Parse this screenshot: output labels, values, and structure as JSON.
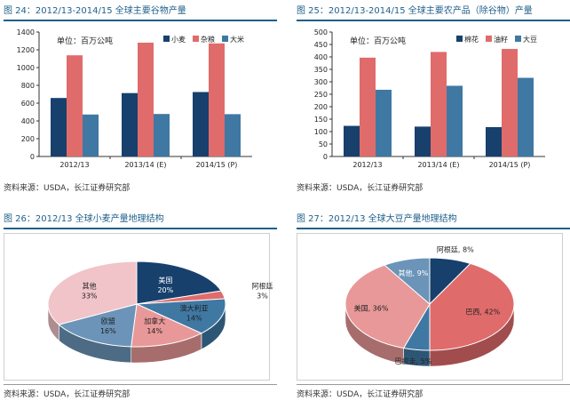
{
  "chart_data": [
    {
      "type": "bar",
      "title": "图 24：2012/13-2014/15 全球主要谷物产量",
      "unit_label": "单位：百万公吨",
      "categories": [
        "2012/13",
        "2013/14 (E)",
        "2014/15 (P)"
      ],
      "series": [
        {
          "name": "小麦",
          "color": "#17406d",
          "values": [
            658,
            713,
            725
          ]
        },
        {
          "name": "杂粮",
          "color": "#e06b6b",
          "values": [
            1138,
            1280,
            1272
          ]
        },
        {
          "name": "大米",
          "color": "#3f78a3",
          "values": [
            472,
            478,
            476
          ]
        }
      ],
      "ylim": [
        0,
        1400
      ],
      "yticks": [
        "0",
        "200",
        "400",
        "600",
        "800",
        "1000",
        "1200",
        "1400"
      ],
      "legend_position": "top-right",
      "grid": false,
      "source": "资料来源：USDA，长江证券研究部"
    },
    {
      "type": "bar",
      "title": "图 25：2012/13-2014/15 全球主要农产品（除谷物）产量",
      "unit_label": "单位：百万公吨",
      "categories": [
        "2012/13",
        "2013/14 (E)",
        "2014/15 (P)"
      ],
      "series": [
        {
          "name": "棉花",
          "color": "#17406d",
          "values": [
            123,
            120,
            118
          ]
        },
        {
          "name": "油籽",
          "color": "#e06b6b",
          "values": [
            397,
            420,
            432
          ]
        },
        {
          "name": "大豆",
          "color": "#3f78a3",
          "values": [
            268,
            284,
            316
          ]
        }
      ],
      "ylim": [
        0,
        500
      ],
      "yticks": [
        "0",
        "50",
        "100",
        "150",
        "200",
        "250",
        "300",
        "350",
        "400",
        "450",
        "500"
      ],
      "legend_position": "top-right",
      "grid": false,
      "source": "资料来源：USDA，长江证券研究部"
    },
    {
      "type": "pie",
      "title": "图 26：2012/13 全球小麦产量地理结构",
      "labels": [
        "美国",
        "阿根廷",
        "澳大利亚",
        "加拿大",
        "欧盟",
        "其他"
      ],
      "label_text": [
        "美国\n20%",
        "阿根廷\n3%",
        "澳大利亚\n14%",
        "加拿大\n14%",
        "欧盟\n16%",
        "其他\n33%"
      ],
      "values": [
        20,
        3,
        14,
        14,
        16,
        33
      ],
      "colors": [
        "#17406d",
        "#e06b6b",
        "#3f78a3",
        "#e89898",
        "#6b94b8",
        "#f0c4c8"
      ],
      "start_angle_deg": -90,
      "source": "资料来源：USDA，长江证券研究部"
    },
    {
      "type": "pie",
      "title": "图 27：2012/13 全球大豆产量地理结构",
      "labels": [
        "阿根廷",
        "巴西",
        "巴拉圭",
        "美国",
        "其他"
      ],
      "label_text": [
        "阿根廷, 8%",
        "巴西, 42%",
        "巴拉圭, 5%",
        "美国, 36%",
        "其他, 9%"
      ],
      "values": [
        8,
        42,
        5,
        36,
        9
      ],
      "colors": [
        "#17406d",
        "#e06b6b",
        "#3f78a3",
        "#e89898",
        "#6b94b8"
      ],
      "start_angle_deg": -90,
      "source": "资料来源：USDA，长江证券研究部"
    }
  ]
}
